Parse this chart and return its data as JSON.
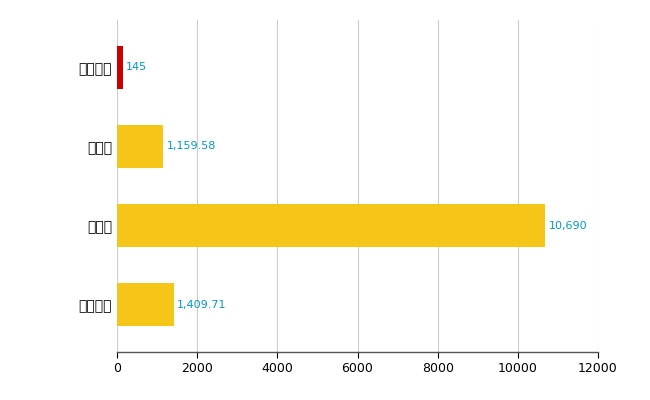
{
  "categories": [
    "日之影町",
    "県平均",
    "県最大",
    "全国平均"
  ],
  "values": [
    145,
    1159.58,
    10690,
    1409.71
  ],
  "bar_colors": [
    "#cc0000",
    "#f5c518",
    "#f5c518",
    "#f5c518"
  ],
  "value_labels": [
    "145",
    "1,159.58",
    "10,690",
    "1,409.71"
  ],
  "xlim": [
    0,
    12000
  ],
  "xticks": [
    0,
    2000,
    4000,
    6000,
    8000,
    10000,
    12000
  ],
  "grid_color": "#cccccc",
  "label_color": "#0099cc",
  "background_color": "#ffffff",
  "bar_height": 0.55,
  "figsize": [
    6.5,
    4.0
  ],
  "dpi": 100
}
